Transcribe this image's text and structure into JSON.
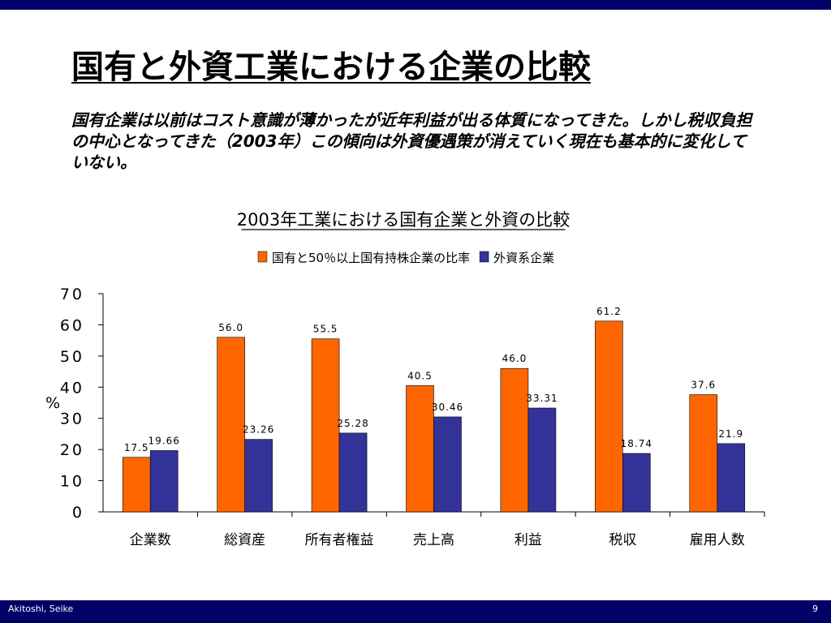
{
  "slide": {
    "title": "国有と外資工業における企業の比較",
    "description": "国有企業は以前はコスト意識が薄かったが近年利益が出る体質になってきた。しかし税収負担の中心となってきた（2003年）この傾向は外資優遇策が消えていく現在も基本的に変化していない。",
    "footer_author": "Akitoshi, Seike",
    "page_number": "9"
  },
  "colors": {
    "bar_frame": "#000066",
    "series_state": "#FF6600",
    "series_foreign": "#333399"
  },
  "chart_data": {
    "type": "bar",
    "title": "2003年工業における国有企業と外資の比較",
    "ylabel": "%",
    "xlabel": "",
    "ylim": [
      0,
      70
    ],
    "yticks": [
      0,
      10,
      20,
      30,
      40,
      50,
      60,
      70
    ],
    "grid": false,
    "legend_position": "top",
    "categories": [
      "企業数",
      "総資産",
      "所有者権益",
      "売上高",
      "利益",
      "税収",
      "雇用人数"
    ],
    "series": [
      {
        "name": "国有と50％以上国有持株企業の比率",
        "values": [
          17.5,
          56.0,
          55.5,
          40.5,
          46.0,
          61.2,
          37.6
        ],
        "labels": [
          "17.5",
          "56.0",
          "55.5",
          "40.5",
          "46.0",
          "61.2",
          "37.6"
        ]
      },
      {
        "name": "外資系企業",
        "values": [
          19.66,
          23.26,
          25.28,
          30.46,
          33.31,
          18.74,
          21.9
        ],
        "labels": [
          "19.66",
          "23.26",
          "25.28",
          "30.46",
          "33.31",
          "18.74",
          "21.9"
        ]
      }
    ]
  }
}
